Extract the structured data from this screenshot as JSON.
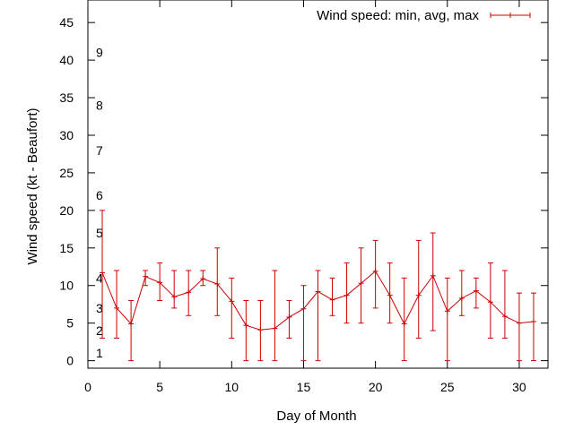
{
  "chart_data": {
    "type": "line",
    "title": "",
    "xlabel": "Day of Month",
    "ylabel": "Wind speed (kt - Beaufort)",
    "xlim": [
      0,
      32
    ],
    "ylim": [
      -1,
      48
    ],
    "x_ticks": [
      0,
      5,
      10,
      15,
      20,
      25,
      30
    ],
    "y_ticks": [
      0,
      5,
      10,
      15,
      20,
      25,
      30,
      35,
      40,
      45
    ],
    "grid": false,
    "legend_position": "top-right",
    "beaufort_labels": [
      {
        "label": "1",
        "value": 1
      },
      {
        "label": "2",
        "value": 4
      },
      {
        "label": "3",
        "value": 7
      },
      {
        "label": "4",
        "value": 11
      },
      {
        "label": "5",
        "value": 17
      },
      {
        "label": "6",
        "value": 22
      },
      {
        "label": "7",
        "value": 28
      },
      {
        "label": "8",
        "value": 34
      },
      {
        "label": "9",
        "value": 41
      }
    ],
    "series": [
      {
        "name": "Wind speed: min, avg, max",
        "color": "#cc0000",
        "x": [
          1,
          2,
          3,
          4,
          5,
          6,
          7,
          8,
          9,
          10,
          11,
          12,
          13,
          14,
          15,
          16,
          17,
          18,
          19,
          20,
          21,
          22,
          23,
          24,
          25,
          26,
          27,
          28,
          29,
          30,
          31
        ],
        "avg": [
          11.7,
          7.0,
          4.9,
          11.2,
          10.4,
          8.5,
          9.1,
          10.9,
          10.2,
          7.9,
          4.7,
          4.1,
          4.3,
          5.8,
          6.9,
          9.2,
          8.1,
          8.7,
          10.3,
          11.9,
          8.7,
          4.9,
          8.7,
          11.3,
          6.6,
          8.3,
          9.3,
          7.8,
          5.9,
          5.0,
          5.2
        ],
        "min": [
          3,
          3,
          0,
          10,
          8,
          7,
          6,
          10,
          6,
          3,
          0,
          0,
          0,
          3,
          0,
          0,
          6,
          5,
          5,
          7,
          5,
          0,
          3,
          4,
          0,
          6,
          7,
          3,
          3,
          0,
          0
        ],
        "max": [
          20,
          12,
          8,
          12,
          13,
          12,
          12,
          12,
          15,
          11,
          8,
          8,
          12,
          8,
          10,
          12,
          11,
          13,
          15,
          16,
          13,
          11,
          16,
          17,
          11,
          12,
          11,
          13,
          12,
          9,
          9
        ]
      }
    ]
  }
}
